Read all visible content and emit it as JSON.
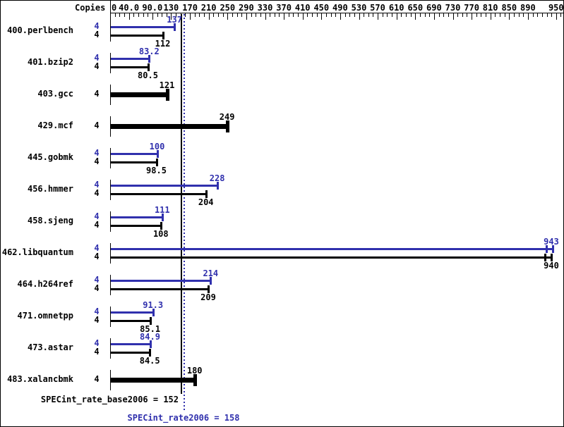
{
  "header": {
    "copies_label": "Copies"
  },
  "colors": {
    "peak": "#3030ad",
    "base": "#000000",
    "background": "#ffffff"
  },
  "summary": {
    "base_text": "SPECint_rate_base2006 = 152",
    "base_value": 152,
    "peak_text": "SPECint_rate2006 = 158",
    "peak_value": 158
  },
  "chart_data": {
    "type": "bar",
    "orientation": "horizontal",
    "xlim": [
      0,
      963
    ],
    "grid": false,
    "minor_tick_step": 10,
    "x_tick_labels": [
      [
        "0",
        0
      ],
      [
        "40.0",
        40
      ],
      [
        "90.0",
        90
      ],
      [
        "130",
        130
      ],
      [
        "170",
        170
      ],
      [
        "210",
        210
      ],
      [
        "250",
        250
      ],
      [
        "290",
        290
      ],
      [
        "330",
        330
      ],
      [
        "370",
        370
      ],
      [
        "410",
        410
      ],
      [
        "450",
        450
      ],
      [
        "490",
        490
      ],
      [
        "530",
        530
      ],
      [
        "570",
        570
      ],
      [
        "610",
        610
      ],
      [
        "650",
        650
      ],
      [
        "690",
        690
      ],
      [
        "730",
        730
      ],
      [
        "770",
        770
      ],
      [
        "810",
        810
      ],
      [
        "850",
        850
      ],
      [
        "890",
        890
      ],
      [
        "950",
        950
      ]
    ],
    "reference_lines": [
      {
        "name": "SPECint_rate_base2006",
        "value": 152,
        "color": "#000000",
        "style": "solid"
      },
      {
        "name": "SPECint_rate2006",
        "value": 158,
        "color": "#3030ad",
        "style": "dotted"
      }
    ],
    "benchmarks": [
      {
        "name": "400.perlbench",
        "bars": [
          {
            "kind": "peak",
            "copies": "4",
            "value": 137,
            "label": "137"
          },
          {
            "kind": "base",
            "copies": "4",
            "value": 112,
            "label": "112"
          }
        ]
      },
      {
        "name": "401.bzip2",
        "bars": [
          {
            "kind": "peak",
            "copies": "4",
            "value": 83.2,
            "label": "83.2"
          },
          {
            "kind": "base",
            "copies": "4",
            "value": 80.5,
            "label": "80.5"
          }
        ]
      },
      {
        "name": "403.gcc",
        "bars": [
          {
            "kind": "base-only",
            "copies": "4",
            "value": 121,
            "label": "121"
          }
        ]
      },
      {
        "name": "429.mcf",
        "bars": [
          {
            "kind": "base-only",
            "copies": "4",
            "value": 249,
            "label": "249"
          }
        ]
      },
      {
        "name": "445.gobmk",
        "bars": [
          {
            "kind": "peak",
            "copies": "4",
            "value": 100,
            "label": "100"
          },
          {
            "kind": "base",
            "copies": "4",
            "value": 98.5,
            "label": "98.5"
          }
        ]
      },
      {
        "name": "456.hmmer",
        "bars": [
          {
            "kind": "peak",
            "copies": "4",
            "value": 228,
            "label": "228"
          },
          {
            "kind": "base",
            "copies": "4",
            "value": 204,
            "label": "204"
          }
        ]
      },
      {
        "name": "458.sjeng",
        "bars": [
          {
            "kind": "peak",
            "copies": "4",
            "value": 111,
            "label": "111"
          },
          {
            "kind": "base",
            "copies": "4",
            "value": 108,
            "label": "108"
          }
        ]
      },
      {
        "name": "462.libquantum",
        "bars": [
          {
            "kind": "peak",
            "copies": "4",
            "value": 943,
            "label": "943",
            "cap_values": [
              929,
              943
            ]
          },
          {
            "kind": "base",
            "copies": "4",
            "value": 940,
            "label": "940",
            "cap_values": [
              926,
              940
            ]
          }
        ]
      },
      {
        "name": "464.h264ref",
        "bars": [
          {
            "kind": "peak",
            "copies": "4",
            "value": 214,
            "label": "214"
          },
          {
            "kind": "base",
            "copies": "4",
            "value": 209,
            "label": "209"
          }
        ]
      },
      {
        "name": "471.omnetpp",
        "bars": [
          {
            "kind": "peak",
            "copies": "4",
            "value": 91.3,
            "label": "91.3"
          },
          {
            "kind": "base",
            "copies": "4",
            "value": 85.1,
            "label": "85.1"
          }
        ]
      },
      {
        "name": "473.astar",
        "bars": [
          {
            "kind": "peak",
            "copies": "4",
            "value": 84.9,
            "label": "84.9"
          },
          {
            "kind": "base",
            "copies": "4",
            "value": 84.5,
            "label": "84.5"
          }
        ]
      },
      {
        "name": "483.xalancbmk",
        "bars": [
          {
            "kind": "base-only",
            "copies": "4",
            "value": 180,
            "label": "180"
          }
        ]
      }
    ]
  }
}
